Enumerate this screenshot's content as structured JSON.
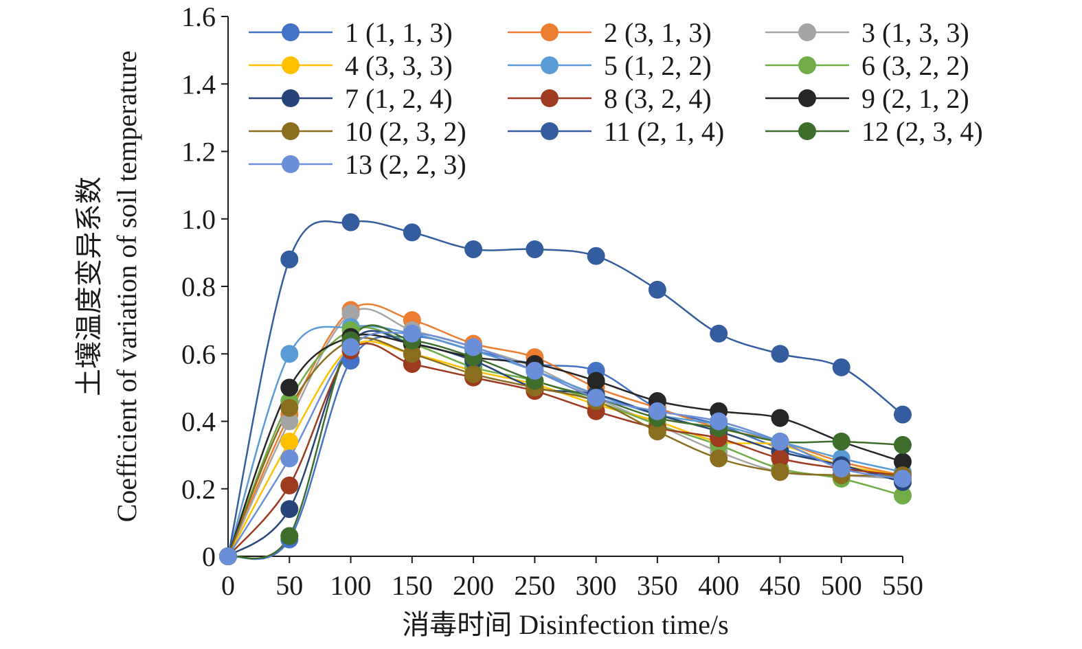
{
  "chart_data": {
    "type": "line",
    "xlabel": "消毒时间 Disinfection time/s",
    "ylabel_line1": "土壤温度变异系数",
    "ylabel_line2": "Coefficient of variation of soil temperature",
    "xlim": [
      0,
      550
    ],
    "ylim": [
      0,
      1.6
    ],
    "x_ticks": [
      "0",
      "50",
      "100",
      "150",
      "200",
      "250",
      "300",
      "350",
      "400",
      "450",
      "500",
      "550"
    ],
    "y_ticks": [
      "0",
      "0.2",
      "0.4",
      "0.6",
      "0.8",
      "1.0",
      "1.2",
      "1.4",
      "1.6"
    ],
    "grid": false,
    "legend_position": "top",
    "x": [
      0,
      50,
      100,
      150,
      200,
      250,
      300,
      350,
      400,
      450,
      500,
      550
    ],
    "series": [
      {
        "name": "1 (1, 1, 3)",
        "color": "#4472c4",
        "values": [
          0,
          0.05,
          0.58,
          0.65,
          0.61,
          0.57,
          0.55,
          0.44,
          0.39,
          0.32,
          0.27,
          0.23
        ]
      },
      {
        "name": "2 (3, 1, 3)",
        "color": "#ed7d31",
        "values": [
          0,
          0.42,
          0.73,
          0.7,
          0.63,
          0.59,
          0.5,
          0.44,
          0.38,
          0.34,
          0.28,
          0.24
        ]
      },
      {
        "name": "3 (1, 3, 3)",
        "color": "#a5a5a5",
        "values": [
          0,
          0.4,
          0.72,
          0.67,
          0.62,
          0.56,
          0.47,
          0.39,
          0.31,
          0.25,
          0.24,
          0.23
        ]
      },
      {
        "name": "4 (3, 3, 3)",
        "color": "#ffc000",
        "values": [
          0,
          0.34,
          0.62,
          0.6,
          0.55,
          0.51,
          0.45,
          0.4,
          0.34,
          0.33,
          0.27,
          0.24
        ]
      },
      {
        "name": "5 (1, 2, 2)",
        "color": "#5b9bd5",
        "values": [
          0,
          0.6,
          0.68,
          0.66,
          0.61,
          0.55,
          0.48,
          0.42,
          0.39,
          0.34,
          0.29,
          0.25
        ]
      },
      {
        "name": "6 (3, 2, 2)",
        "color": "#70ad47",
        "values": [
          0,
          0.46,
          0.67,
          0.63,
          0.56,
          0.52,
          0.46,
          0.39,
          0.33,
          0.26,
          0.23,
          0.18
        ]
      },
      {
        "name": "7 (1, 2, 4)",
        "color": "#264478",
        "values": [
          0,
          0.14,
          0.63,
          0.63,
          0.58,
          0.5,
          0.48,
          0.42,
          0.37,
          0.31,
          0.27,
          0.22
        ]
      },
      {
        "name": "8 (3, 2, 4)",
        "color": "#9e3a1f",
        "values": [
          0,
          0.21,
          0.61,
          0.57,
          0.53,
          0.49,
          0.43,
          0.38,
          0.35,
          0.29,
          0.26,
          0.24
        ]
      },
      {
        "name": "9 (2, 1, 2)",
        "color": "#262626",
        "values": [
          0,
          0.5,
          0.65,
          0.63,
          0.59,
          0.57,
          0.52,
          0.46,
          0.43,
          0.41,
          0.34,
          0.28
        ]
      },
      {
        "name": "10 (2, 3, 2)",
        "color": "#8a6d1f",
        "values": [
          0,
          0.44,
          0.64,
          0.6,
          0.54,
          0.5,
          0.46,
          0.37,
          0.29,
          0.25,
          0.24,
          0.24
        ]
      },
      {
        "name": "11 (2, 1, 4)",
        "color": "#335d9f",
        "values": [
          0,
          0.88,
          0.99,
          0.96,
          0.91,
          0.91,
          0.89,
          0.79,
          0.66,
          0.6,
          0.56,
          0.42
        ]
      },
      {
        "name": "12 (2, 3, 4)",
        "color": "#3e6e2c",
        "values": [
          0,
          0.06,
          0.64,
          0.64,
          0.59,
          0.52,
          0.47,
          0.41,
          0.38,
          0.34,
          0.34,
          0.33
        ]
      },
      {
        "name": "13 (2, 2, 3)",
        "color": "#6a8ed8",
        "values": [
          0,
          0.29,
          0.62,
          0.66,
          0.62,
          0.55,
          0.47,
          0.43,
          0.4,
          0.34,
          0.26,
          0.23
        ]
      }
    ]
  }
}
